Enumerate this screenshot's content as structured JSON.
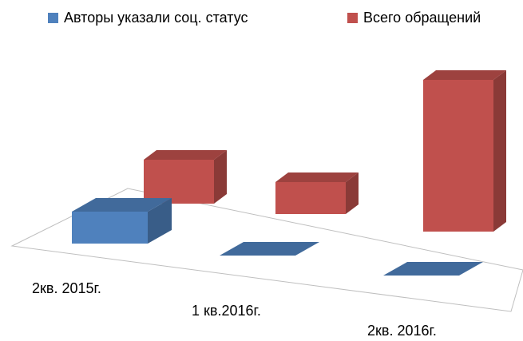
{
  "chart_data": {
    "type": "bar3d",
    "categories": [
      "2кв. 2015г.",
      "1 кв.2016г.",
      "2кв. 2016г."
    ],
    "series": [
      {
        "name": "Авторы указали соц. статус",
        "color": "#4f81bd",
        "values": [
          40,
          0,
          0
        ]
      },
      {
        "name": "Всего обращений",
        "color": "#c0504d",
        "values": [
          55,
          40,
          190
        ]
      }
    ]
  }
}
